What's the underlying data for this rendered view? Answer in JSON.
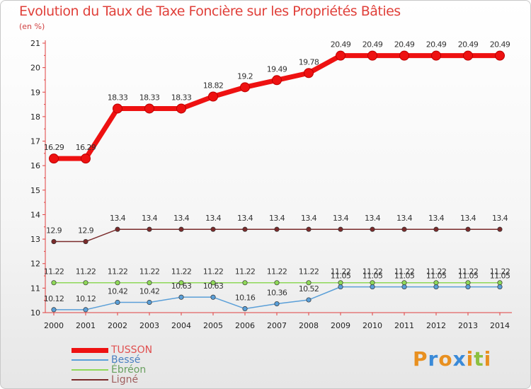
{
  "title": "Evolution du Taux de Taxe Foncière sur les Propriétés Bâties",
  "unit_label": "(en %)",
  "logo": {
    "letters": [
      "P",
      "r",
      "o",
      "x",
      "i",
      "t",
      "i"
    ],
    "colors": [
      "#e89020",
      "#3a8ad8",
      "#e89020",
      "#3a8ad8",
      "#e89020",
      "#8cc040",
      "#e89020"
    ]
  },
  "colors": {
    "TUSSON": "#ee1111",
    "Bessé": "#5a9fd8",
    "Ébréon": "#8ed858",
    "Ligné": "#7a2a2a",
    "axis": "#e04040",
    "tick_text": "#222222",
    "grid": "#dddddd"
  },
  "chart_data": {
    "type": "line",
    "title": "Evolution du Taux de Taxe Foncière sur les Propriétés Bâties",
    "xlabel": "",
    "ylabel": "(en %)",
    "ylim": [
      10,
      21
    ],
    "yticks": [
      "10",
      "11",
      "12",
      "13",
      "14",
      "15",
      "16",
      "17",
      "18",
      "19",
      "20",
      "21"
    ],
    "x": [
      "2000",
      "2001",
      "2002",
      "2003",
      "2004",
      "2005",
      "2006",
      "2007",
      "2008",
      "2009",
      "2010",
      "2011",
      "2012",
      "2013",
      "2014"
    ],
    "series": [
      {
        "name": "TUSSON",
        "values": [
          16.29,
          16.29,
          18.33,
          18.33,
          18.33,
          18.82,
          19.2,
          19.49,
          19.78,
          20.49,
          20.49,
          20.49,
          20.49,
          20.49,
          20.49
        ],
        "labels": [
          "16.29",
          "16.29",
          "18.33",
          "18.33",
          "18.33",
          "18.82",
          "19.2",
          "19.49",
          "19.78",
          "20.49",
          "20.49",
          "20.49",
          "20.49",
          "20.49",
          "20.49"
        ]
      },
      {
        "name": "Bessé",
        "values": [
          10.12,
          10.12,
          10.42,
          10.42,
          10.63,
          10.63,
          10.16,
          10.36,
          10.52,
          11.05,
          11.05,
          11.05,
          11.05,
          11.05,
          11.05
        ],
        "labels": [
          "10.12",
          "10.12",
          "10.42",
          "10.42",
          "10.63",
          "10.63",
          "10.16",
          "10.36",
          "10.52",
          "11.05",
          "11.05",
          "11.05",
          "11.05",
          "11.05",
          "11.05"
        ]
      },
      {
        "name": "Ébréon",
        "values": [
          11.22,
          11.22,
          11.22,
          11.22,
          11.22,
          11.22,
          11.22,
          11.22,
          11.22,
          11.22,
          11.22,
          11.22,
          11.22,
          11.22,
          11.22
        ],
        "labels": [
          "11.22",
          "11.22",
          "11.22",
          "11.22",
          "11.22",
          "11.22",
          "11.22",
          "11.22",
          "11.22",
          "11.22",
          "11.22",
          "11.22",
          "11.22",
          "11.22",
          "11.22"
        ]
      },
      {
        "name": "Ligné",
        "values": [
          12.9,
          12.9,
          13.4,
          13.4,
          13.4,
          13.4,
          13.4,
          13.4,
          13.4,
          13.4,
          13.4,
          13.4,
          13.4,
          13.4,
          13.4
        ],
        "labels": [
          "12.9",
          "12.9",
          "13.4",
          "13.4",
          "13.4",
          "13.4",
          "13.4",
          "13.4",
          "13.4",
          "13.4",
          "13.4",
          "13.4",
          "13.4",
          "13.4",
          "13.4"
        ]
      }
    ],
    "legend": [
      "TUSSON",
      "Bessé",
      "Ébréon",
      "Ligné"
    ],
    "legend_position": "bottom-left",
    "grid": false
  }
}
